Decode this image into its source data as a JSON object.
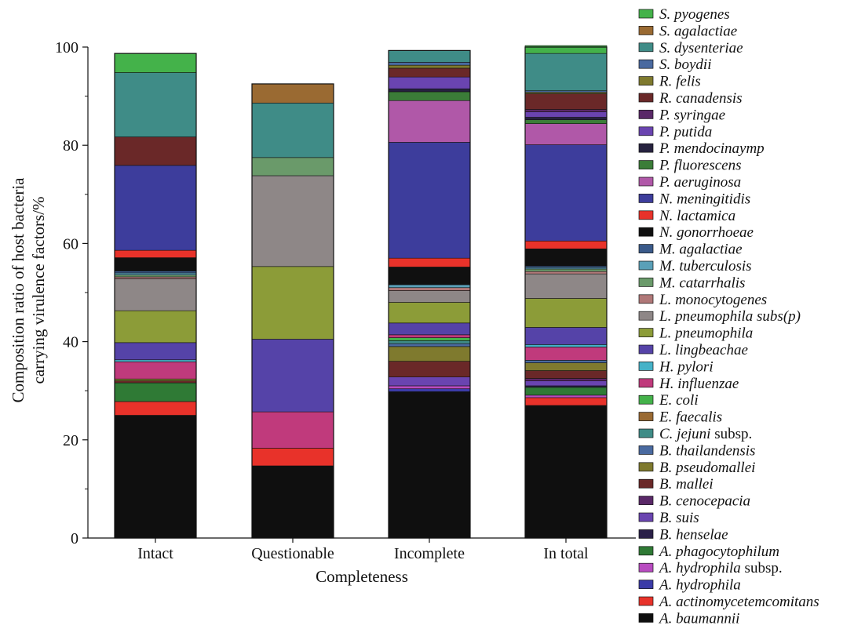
{
  "chart_data": {
    "type": "bar",
    "stacked": true,
    "xlabel": "Completeness",
    "ylabel": [
      "Composition ratio of host bacteria",
      "carrying virulence factors/%"
    ],
    "ylim": [
      0,
      100
    ],
    "yticks": [
      0,
      20,
      40,
      60,
      80,
      100
    ],
    "categories": [
      "Intact",
      "Questionable",
      "Incomplete",
      "In total"
    ],
    "legend_position": "right",
    "series": [
      {
        "name": "A. baumannii",
        "italic": "A. baumannii",
        "plain": "",
        "color": "#0f0f0f",
        "values": [
          25.0,
          14.7,
          29.8,
          27.0
        ]
      },
      {
        "name": "A. actinomycetemcomitans",
        "italic": "A. actinomycetemcomitans",
        "plain": "",
        "color": "#e8322a",
        "values": [
          2.8,
          3.6,
          0,
          1.6
        ]
      },
      {
        "name": "A. hydrophila",
        "italic": "A. hydrophila",
        "plain": "",
        "color": "#3b3ba8",
        "values": [
          0,
          0,
          0.6,
          0
        ]
      },
      {
        "name": "A. hydrophila subsp.",
        "italic": "A. hydrophila",
        "plain": " subsp.",
        "color": "#b84bc0",
        "values": [
          0,
          0,
          0.6,
          0.5
        ]
      },
      {
        "name": "A. phagocytophilum",
        "italic": "A. phagocytophilum",
        "plain": "",
        "color": "#2f7a35",
        "values": [
          3.8,
          0,
          0,
          1.6
        ]
      },
      {
        "name": "B. henselae",
        "italic": "B. henselae",
        "plain": "",
        "color": "#2a2048",
        "values": [
          0,
          0,
          0,
          0.3
        ]
      },
      {
        "name": "B. suis",
        "italic": "B. suis",
        "plain": "",
        "color": "#6a44b0",
        "values": [
          0,
          0,
          1.8,
          1.0
        ]
      },
      {
        "name": "B. cenocepacia",
        "italic": "B. cenocepacia",
        "plain": "",
        "color": "#5a2868",
        "values": [
          0,
          0,
          0,
          0.5
        ]
      },
      {
        "name": "B. mallei",
        "italic": "B. mallei",
        "plain": "",
        "color": "#6a2828",
        "values": [
          0.4,
          0,
          3.2,
          1.6
        ]
      },
      {
        "name": "B. pseudomallei",
        "italic": "B. pseudomallei",
        "plain": "",
        "color": "#7f7a2e",
        "values": [
          0.4,
          0,
          3.0,
          1.6
        ]
      },
      {
        "name": "B. thailandensis",
        "italic": "B. thailandensis",
        "plain": "",
        "color": "#4a6aa0",
        "values": [
          0,
          0,
          0.6,
          0.5
        ]
      },
      {
        "name": "C. jejuni subsp.",
        "italic": "C. jejuni",
        "plain": " subsp.",
        "color": "#3f8c87",
        "values": [
          0,
          0,
          0.6,
          0
        ]
      },
      {
        "name": "E. faecalis",
        "italic": "E. faecalis",
        "plain": "",
        "color": "#9a6a32",
        "values": [
          0,
          0,
          0,
          0
        ]
      },
      {
        "name": "E. coli",
        "italic": "E. coli",
        "plain": "",
        "color": "#44b24a",
        "values": [
          0,
          0,
          0.6,
          0
        ]
      },
      {
        "name": "H. influenzae",
        "italic": "H. influenzae",
        "plain": "",
        "color": "#c03a7c",
        "values": [
          3.5,
          7.4,
          0.6,
          2.7
        ]
      },
      {
        "name": "H. pylori",
        "italic": "H. pylori",
        "plain": "",
        "color": "#45b2c8",
        "values": [
          0.4,
          0,
          0,
          0.5
        ]
      },
      {
        "name": "L. lingbeachae",
        "italic": "L. lingbeachae",
        "plain": "",
        "color": "#5543a8",
        "values": [
          3.5,
          14.8,
          2.4,
          3.5
        ]
      },
      {
        "name": "L. pneumophila",
        "italic": "L. pneumophila",
        "plain": "",
        "color": "#8c9c38",
        "values": [
          6.5,
          14.8,
          4.2,
          5.9
        ]
      },
      {
        "name": "L. pneumophila subs(p)",
        "italic": "L. pneumophila subs(p)",
        "plain": "",
        "color": "#8e8787",
        "values": [
          6.5,
          18.5,
          2.4,
          5.0
        ]
      },
      {
        "name": "L. monocytogenes",
        "italic": "L. monocytogenes",
        "plain": "",
        "color": "#b07878",
        "values": [
          0.4,
          0,
          0.6,
          0.5
        ]
      },
      {
        "name": "M. catarrhalis",
        "italic": "M. catarrhalis",
        "plain": "",
        "color": "#6a9a6a",
        "values": [
          0.4,
          3.7,
          0,
          0.5
        ]
      },
      {
        "name": "M. tuberculosis",
        "italic": "M. tuberculosis",
        "plain": "",
        "color": "#5aa0b8",
        "values": [
          0.4,
          0,
          0.6,
          0.3
        ]
      },
      {
        "name": "M. agalactiae",
        "italic": "M. agalactiae",
        "plain": "",
        "color": "#3a5a8a",
        "values": [
          0.4,
          0,
          0,
          0.3
        ]
      },
      {
        "name": "N. gonorrhoeae",
        "italic": "N. gonorrhoeae",
        "plain": "",
        "color": "#101010",
        "values": [
          2.7,
          0,
          3.6,
          3.5
        ]
      },
      {
        "name": "N. lactamica",
        "italic": "N. lactamica",
        "plain": "",
        "color": "#e8322a",
        "values": [
          1.5,
          0,
          1.8,
          1.6
        ]
      },
      {
        "name": "N. meningitidis",
        "italic": "N. meningitidis",
        "plain": "",
        "color": "#3d3d9c",
        "values": [
          17.3,
          0,
          23.6,
          19.6
        ]
      },
      {
        "name": "P. aeruginosa",
        "italic": "P. aeruginosa",
        "plain": "",
        "color": "#b058a8",
        "values": [
          0,
          0,
          8.5,
          4.3
        ]
      },
      {
        "name": "P. fluorescens",
        "italic": "P. fluorescens",
        "plain": "",
        "color": "#3b7d38",
        "values": [
          0,
          0,
          1.8,
          0.8
        ]
      },
      {
        "name": "P. mendocinaymp",
        "italic": "P. mendocinaymp",
        "plain": "",
        "color": "#26223f",
        "values": [
          0,
          0,
          0.6,
          0.5
        ]
      },
      {
        "name": "P. putida",
        "italic": "P. putida",
        "plain": "",
        "color": "#6a44b0",
        "values": [
          0,
          0,
          2.4,
          1.1
        ]
      },
      {
        "name": "P. syringae",
        "italic": "P. syringae",
        "plain": "",
        "color": "#5a2868",
        "values": [
          0,
          0,
          0,
          0.5
        ]
      },
      {
        "name": "R. canadensis",
        "italic": "R. canadensis",
        "plain": "",
        "color": "#6a2828",
        "values": [
          5.8,
          0,
          1.8,
          3.2
        ]
      },
      {
        "name": "R. felis",
        "italic": "R. felis",
        "plain": "",
        "color": "#7f7a2e",
        "values": [
          0,
          0,
          0.6,
          0.3
        ]
      },
      {
        "name": "S. boydii",
        "italic": "S. boydii",
        "plain": "",
        "color": "#4a6aa0",
        "values": [
          0,
          0,
          0.6,
          0.3
        ]
      },
      {
        "name": "S. dysenteriae",
        "italic": "S. dysenteriae",
        "plain": "",
        "color": "#3f8c87",
        "values": [
          13.1,
          11.1,
          2.4,
          7.6
        ]
      },
      {
        "name": "S. agalactiae",
        "italic": "S. agalactiae",
        "plain": "",
        "color": "#9a6a32",
        "values": [
          0,
          3.9,
          0,
          0
        ]
      },
      {
        "name": "S. pyogenes",
        "italic": "S. pyogenes",
        "plain": "",
        "color": "#44b24a",
        "values": [
          3.9,
          0,
          0,
          1.6
        ]
      }
    ]
  }
}
